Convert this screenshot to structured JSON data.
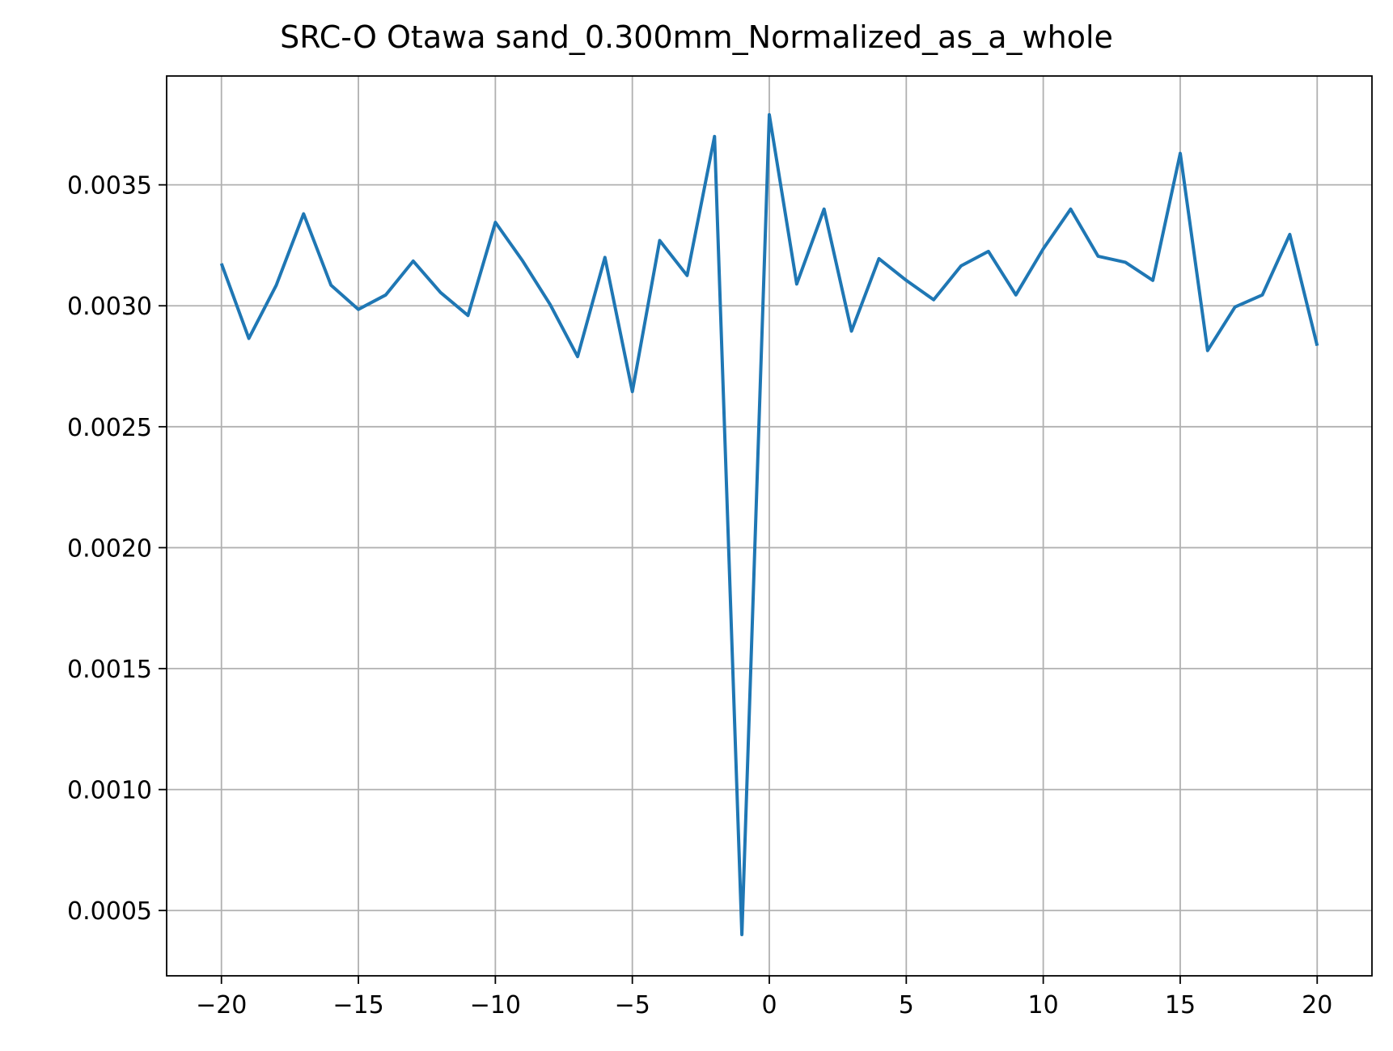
{
  "chart_data": {
    "type": "line",
    "title": "SRC-O Otawa sand_0.300mm_Normalized_as_a_whole",
    "xlabel": "",
    "ylabel": "",
    "xlim": [
      -22,
      22
    ],
    "ylim": [
      0.00023,
      0.00395
    ],
    "grid": true,
    "x_ticks": [
      -20,
      -15,
      -10,
      -5,
      0,
      5,
      10,
      15,
      20
    ],
    "x_tick_labels": [
      "−20",
      "−15",
      "−10",
      "−5",
      "0",
      "5",
      "10",
      "15",
      "20"
    ],
    "y_ticks": [
      0.0005,
      0.001,
      0.0015,
      0.002,
      0.0025,
      0.003,
      0.0035
    ],
    "y_tick_labels": [
      "0.0005",
      "0.0010",
      "0.0015",
      "0.0020",
      "0.0025",
      "0.0030",
      "0.0035"
    ],
    "series": [
      {
        "color": "#1f77b4",
        "x": [
          -20,
          -19,
          -18,
          -17,
          -16,
          -15,
          -14,
          -13,
          -12,
          -11,
          -10,
          -9,
          -8,
          -7,
          -6,
          -5,
          -4,
          -3,
          -2,
          -1,
          0,
          1,
          2,
          3,
          4,
          5,
          6,
          7,
          8,
          9,
          10,
          11,
          12,
          13,
          14,
          15,
          16,
          17,
          18,
          19,
          20
        ],
        "values": [
          0.003175,
          0.002865,
          0.003085,
          0.00338,
          0.003085,
          0.002985,
          0.003045,
          0.003185,
          0.003055,
          0.00296,
          0.003345,
          0.003185,
          0.003005,
          0.00279,
          0.0032,
          0.002645,
          0.00327,
          0.003125,
          0.0037,
          0.0004,
          0.00379,
          0.00309,
          0.0034,
          0.002895,
          0.003195,
          0.003105,
          0.003025,
          0.003165,
          0.003225,
          0.003045,
          0.003235,
          0.0034,
          0.003205,
          0.00318,
          0.003105,
          0.00363,
          0.002815,
          0.002995,
          0.003045,
          0.003295,
          0.002835
        ]
      }
    ]
  }
}
